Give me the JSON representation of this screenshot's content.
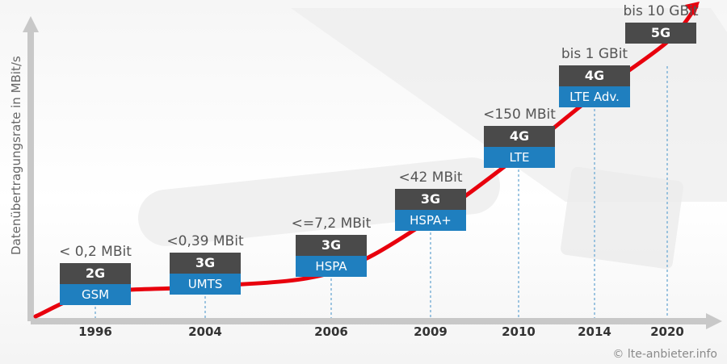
{
  "chart_data": {
    "type": "line",
    "ylabel": "Datenübertragungsrate in MBit/s",
    "xlabel": "",
    "categories": [
      "1996",
      "2004",
      "2006",
      "2009",
      "2010",
      "2014",
      "2020"
    ],
    "series": [
      {
        "values": [
          0.2,
          0.39,
          7.2,
          42,
          150,
          1000,
          10000
        ],
        "generation": [
          "2G",
          "3G",
          "3G",
          "3G",
          "4G",
          "4G",
          "5G"
        ],
        "technology": [
          "GSM",
          "UMTS",
          "HSPA",
          "HSPA+",
          "LTE",
          "LTE Adv.",
          ""
        ],
        "speed_labels": [
          "< 0,2 MBit",
          "<0,39 MBit",
          "<=7,2 MBit",
          "<42 MBit",
          "<150 MBit",
          "bis 1 GBit",
          "bis 10 GBit"
        ]
      }
    ],
    "grid": false,
    "legend": "none"
  },
  "colors": {
    "curve": "#e8000d",
    "generation_box": "#4a4a4a",
    "technology_box": "#1f7fbf",
    "axis": "#c8c8c8",
    "guide": "#7fb3d8"
  },
  "credit": "© lte-anbieter.info"
}
